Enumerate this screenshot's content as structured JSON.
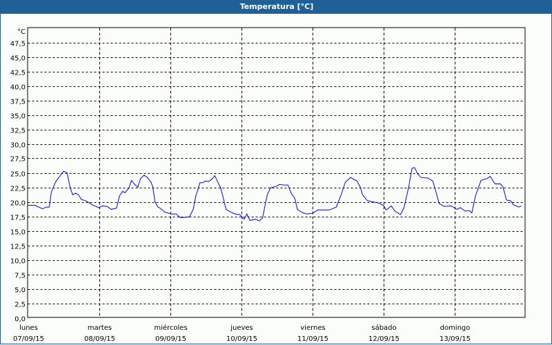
{
  "window": {
    "title": "Temperatura [°C]"
  },
  "chart_data": {
    "type": "line",
    "title": "Temperatura [°C]",
    "ylabel": "°C",
    "xlabel": "",
    "ylim": [
      0,
      50
    ],
    "y_ticks": [
      "0,0",
      "2,5",
      "5,0",
      "7,5",
      "10,0",
      "12,5",
      "15,0",
      "17,5",
      "20,0",
      "22,5",
      "25,0",
      "27,5",
      "30,0",
      "32,5",
      "35,0",
      "37,5",
      "40,0",
      "42,5",
      "45,0",
      "47,5"
    ],
    "x_unit": "hours since 07/09/15 00:00",
    "xlim": [
      0,
      168
    ],
    "x_ticks": [
      {
        "day": "lunes",
        "date": "07/09/15"
      },
      {
        "day": "martes",
        "date": "08/09/15"
      },
      {
        "day": "miércoles",
        "date": "09/09/15"
      },
      {
        "day": "jueves",
        "date": "10/09/15"
      },
      {
        "day": "viernes",
        "date": "11/09/15"
      },
      {
        "day": "sábado",
        "date": "12/09/15"
      },
      {
        "day": "domingo",
        "date": "13/09/15"
      }
    ],
    "grid": true,
    "line_color": "#0000ff",
    "series": [
      {
        "name": "Temperatura",
        "x": [
          0,
          2.3,
          4.9,
          6.2,
          7.2,
          7.9,
          9.3,
          12.0,
          13.2,
          14.2,
          15.1,
          16.1,
          17.1,
          18.0,
          19.4,
          21.7,
          23.9,
          25.2,
          26.8,
          28.1,
          29.9,
          30.9,
          31.9,
          32.8,
          34.0,
          35.0,
          35.9,
          37.1,
          38.0,
          39.2,
          40.4,
          41.5,
          42.1,
          42.9,
          43.9,
          45.0,
          46.0,
          48.2,
          50.1,
          51.4,
          52.4,
          54.5,
          55.8,
          56.7,
          58.1,
          59.0,
          60.0,
          61.0,
          62.1,
          63.1,
          64.1,
          65.1,
          66.9,
          68.3,
          69.9,
          71.5,
          73.0,
          73.9,
          75.0,
          76.9,
          78.1,
          79.2,
          80.8,
          81.9,
          83.9,
          85.0,
          86.2,
          87.8,
          88.9,
          90.1,
          91.0,
          92.4,
          94.0,
          95.9,
          97.9,
          99.4,
          101.8,
          104.1,
          105.6,
          107.2,
          108.9,
          111.1,
          112.2,
          113.0,
          114.6,
          116.5,
          118.4,
          120.0,
          121.0,
          122.7,
          123.9,
          125.8,
          127.0,
          128.5,
          129.7,
          130.6,
          131.6,
          132.8,
          135.1,
          136.7,
          137.5,
          138.9,
          140.6,
          142.9,
          144.9,
          146.0,
          147.6,
          149.0,
          149.9,
          151.1,
          153.0,
          154.2,
          155.0,
          156.1,
          157.7,
          159.6,
          160.4,
          161.6,
          163.0,
          163.9,
          165.8,
          166.6
        ],
        "y": [
          19.4,
          19.4,
          18.8,
          19.1,
          19.1,
          21.7,
          23.4,
          25.3,
          25.0,
          22.6,
          21.2,
          21.5,
          21.2,
          20.4,
          20.2,
          19.5,
          19.0,
          19.3,
          19.2,
          18.7,
          18.9,
          21.0,
          21.8,
          21.6,
          22.3,
          23.7,
          23.1,
          22.5,
          24.0,
          24.6,
          24.2,
          23.4,
          22.7,
          20.0,
          19.1,
          18.8,
          18.3,
          17.9,
          17.9,
          17.3,
          17.3,
          17.4,
          18.7,
          21.0,
          23.3,
          23.3,
          23.6,
          23.5,
          23.9,
          24.5,
          23.4,
          22.4,
          18.7,
          18.3,
          17.9,
          17.8,
          17.0,
          17.9,
          16.8,
          17.0,
          16.7,
          17.2,
          21.2,
          22.4,
          22.7,
          23.0,
          22.9,
          22.9,
          21.5,
          20.6,
          18.7,
          18.2,
          17.9,
          18.0,
          18.6,
          18.6,
          18.6,
          19.1,
          21.0,
          23.4,
          24.2,
          23.6,
          22.6,
          21.2,
          20.2,
          20.0,
          19.8,
          19.4,
          18.6,
          19.3,
          18.4,
          17.8,
          19.0,
          22.4,
          25.8,
          25.9,
          24.8,
          24.2,
          24.1,
          23.6,
          22.2,
          19.7,
          19.2,
          19.3,
          18.7,
          19.0,
          18.4,
          18.5,
          18.1,
          21.0,
          23.7,
          23.9,
          24.0,
          24.4,
          23.1,
          23.1,
          22.6,
          20.3,
          20.2,
          19.5,
          19.1,
          19.3
        ]
      }
    ]
  }
}
